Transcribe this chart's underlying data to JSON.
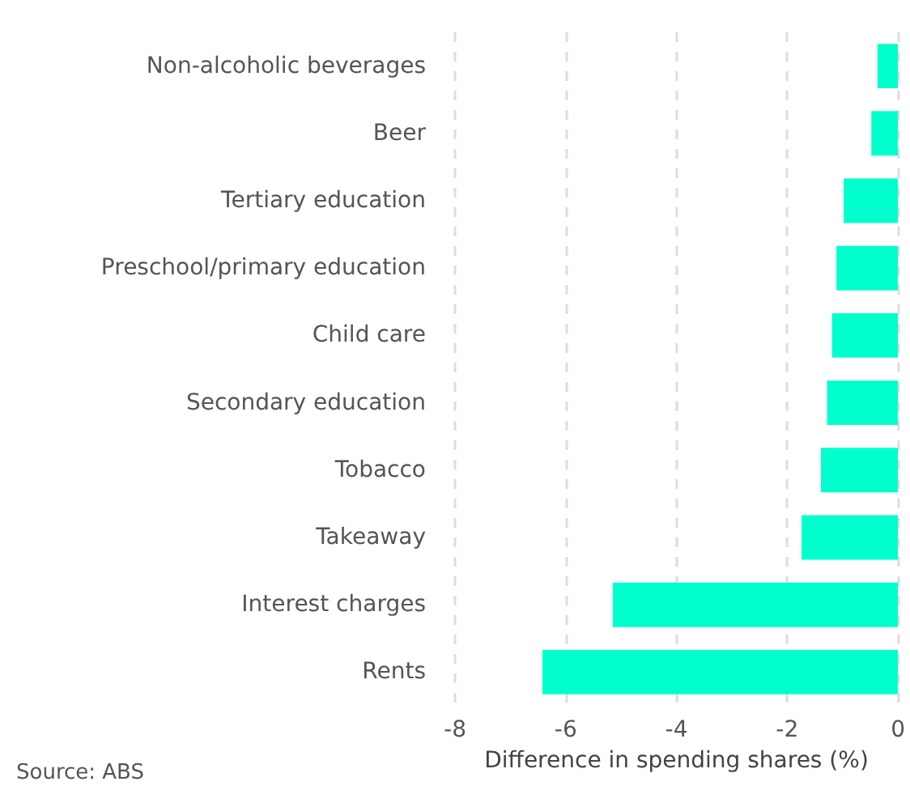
{
  "chart_data": {
    "type": "bar",
    "orientation": "horizontal",
    "categories": [
      "Non-alcoholic beverages",
      "Beer",
      "Tertiary education",
      "Preschool/primary education",
      "Child care",
      "Secondary education",
      "Tobacco",
      "Takeaway",
      "Interest charges",
      "Rents"
    ],
    "values": [
      -0.37,
      -0.48,
      -0.98,
      -1.11,
      -1.19,
      -1.28,
      -1.39,
      -1.74,
      -5.15,
      -6.42
    ],
    "color": "#00ffcc",
    "xlim": [
      -8,
      0
    ],
    "xticks": [
      -8,
      -6,
      -4,
      -2,
      0
    ],
    "xlabel": "Difference in spending shares (%)",
    "annotations": [
      "Source: ABS"
    ],
    "grid": "x"
  }
}
